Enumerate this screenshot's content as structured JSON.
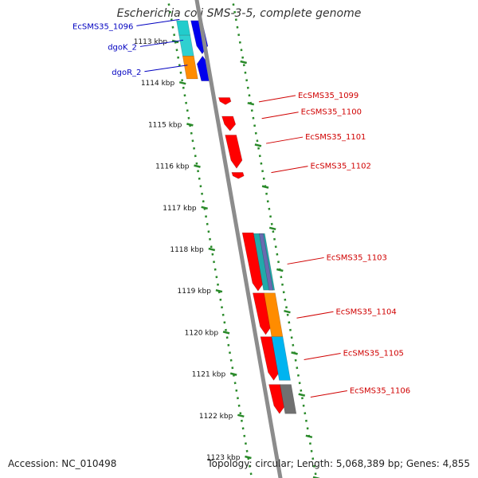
{
  "title": "Escherichia coli SMS-3-5, complete genome",
  "footer": {
    "accession": "Accession: NC_010498",
    "summary": "Topology: circular; Length: 5,068,389 bp; Genes: 4,855"
  },
  "colors": {
    "backbone": "#8c8c8c",
    "tick": "#2a8a2a",
    "left_label": "#0000c0",
    "right_label": "#d00000"
  },
  "ticks": [
    {
      "label": "1113 kbp",
      "kbp": 1113
    },
    {
      "label": "1114 kbp",
      "kbp": 1114
    },
    {
      "label": "1115 kbp",
      "kbp": 1115
    },
    {
      "label": "1116 kbp",
      "kbp": 1116
    },
    {
      "label": "1117 kbp",
      "kbp": 1117
    },
    {
      "label": "1118 kbp",
      "kbp": 1118
    },
    {
      "label": "1119 kbp",
      "kbp": 1119
    },
    {
      "label": "1120 kbp",
      "kbp": 1120
    },
    {
      "label": "1121 kbp",
      "kbp": 1121
    },
    {
      "label": "1122 kbp",
      "kbp": 1122
    },
    {
      "label": "1123 kbp",
      "kbp": 1123
    }
  ],
  "left_labels": [
    {
      "text": "EcSMS35_1096",
      "kbp": 1112.7
    },
    {
      "text": "dgoK_2",
      "kbp": 1113.2
    },
    {
      "text": "dgoR_2",
      "kbp": 1113.8
    }
  ],
  "right_labels": [
    {
      "text": "EcSMS35_1099",
      "kbp": 1114.3
    },
    {
      "text": "EcSMS35_1100",
      "kbp": 1114.7
    },
    {
      "text": "EcSMS35_1101",
      "kbp": 1115.3
    },
    {
      "text": "EcSMS35_1102",
      "kbp": 1116.0
    },
    {
      "text": "EcSMS35_1103",
      "kbp": 1118.2
    },
    {
      "text": "EcSMS35_1104",
      "kbp": 1119.5
    },
    {
      "text": "EcSMS35_1105",
      "kbp": 1120.5
    },
    {
      "text": "EcSMS35_1106",
      "kbp": 1121.4
    }
  ],
  "features": [
    {
      "start": 1112.5,
      "end": 1112.85,
      "ring": -1,
      "color": "#22cccc",
      "dir": "flat"
    },
    {
      "start": 1112.85,
      "end": 1113.35,
      "ring": -1,
      "color": "#2fd0d0",
      "dir": "flat"
    },
    {
      "start": 1113.35,
      "end": 1113.9,
      "ring": -1,
      "color": "#ff8c00",
      "dir": "flat"
    },
    {
      "start": 1112.5,
      "end": 1113.3,
      "ring": 0,
      "color": "#0000ee",
      "dir": "down"
    },
    {
      "start": 1113.35,
      "end": 1113.95,
      "ring": 0,
      "color": "#0000ee",
      "dir": "up"
    },
    {
      "start": 1114.35,
      "end": 1114.52,
      "ring": 1,
      "color": "#ff0000",
      "dir": "down"
    },
    {
      "start": 1114.8,
      "end": 1115.15,
      "ring": 1,
      "color": "#ff0000",
      "dir": "down"
    },
    {
      "start": 1115.25,
      "end": 1116.05,
      "ring": 1,
      "color": "#ff0000",
      "dir": "down"
    },
    {
      "start": 1116.15,
      "end": 1116.3,
      "ring": 1,
      "color": "#ff0000",
      "dir": "down"
    },
    {
      "start": 1117.6,
      "end": 1119.0,
      "ring": 1,
      "color": "#ff0000",
      "dir": "down"
    },
    {
      "start": 1117.62,
      "end": 1118.98,
      "ring": 2,
      "color": "#22aaaa",
      "dir": "flat"
    },
    {
      "start": 1117.62,
      "end": 1118.98,
      "ring": 3,
      "color": "#6a6ab0",
      "dir": "flat"
    },
    {
      "start": 1119.05,
      "end": 1120.05,
      "ring": 1,
      "color": "#ff0000",
      "dir": "down"
    },
    {
      "start": 1120.1,
      "end": 1121.15,
      "ring": 1,
      "color": "#ff0000",
      "dir": "down"
    },
    {
      "start": 1121.25,
      "end": 1121.95,
      "ring": 1,
      "color": "#ff0000",
      "dir": "down"
    },
    {
      "start": 1119.05,
      "end": 1120.1,
      "ring": 2,
      "color": "#ff8c00",
      "dir": "flat"
    },
    {
      "start": 1120.1,
      "end": 1121.15,
      "ring": 2,
      "color": "#00b4f0",
      "dir": "flat"
    },
    {
      "start": 1121.25,
      "end": 1121.95,
      "ring": 2,
      "color": "#707070",
      "dir": "flat"
    }
  ]
}
